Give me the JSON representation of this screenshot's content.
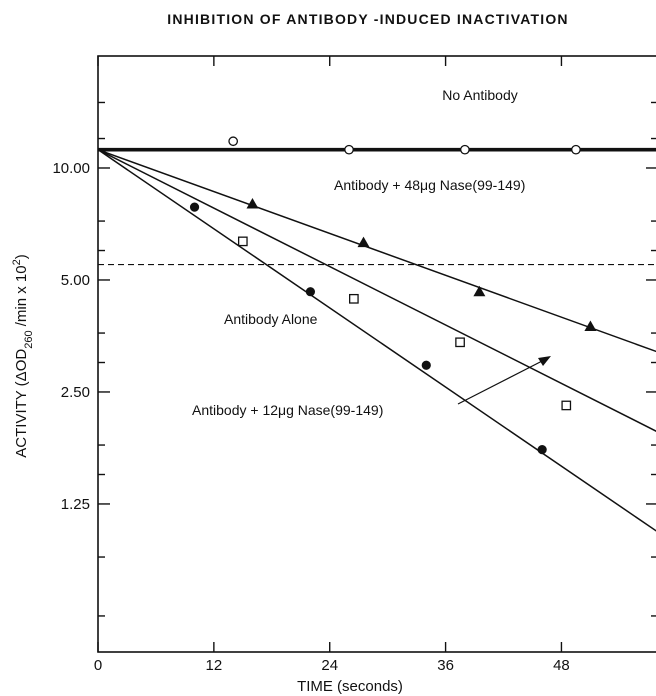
{
  "chart_data": {
    "type": "scatter",
    "title": "INHIBITION OF ANTIBODY -INDUCED INACTIVATION",
    "xlabel": "TIME (seconds)",
    "ylabel": "ACTIVITY (ΔOD260 /min x 10²)",
    "xlim": [
      0,
      58
    ],
    "ylim": [
      0.5,
      20
    ],
    "yscale": "log",
    "x_ticks": [
      0,
      12,
      24,
      36,
      48
    ],
    "y_ticks": [
      1.25,
      2.5,
      5.0,
      10.0
    ],
    "y_tick_labels": [
      "1.25",
      "2.50",
      "5.00",
      "10.00"
    ],
    "x_tick_labels": [
      "0",
      "12",
      "24",
      "36",
      "48"
    ],
    "grid": false,
    "reference_line": {
      "y": 5.5,
      "style": "dashed"
    },
    "series": [
      {
        "name": "No Antibody",
        "marker": "open-circle",
        "points": [
          [
            14,
            11.8
          ],
          [
            26,
            11.2
          ],
          [
            38,
            11.2
          ],
          [
            49.5,
            11.2
          ]
        ],
        "fit": [
          [
            0,
            11.2
          ],
          [
            58,
            11.2
          ]
        ]
      },
      {
        "name": "Antibody + 48μg Nase(99-149)",
        "marker": "filled-triangle",
        "points": [
          [
            16,
            8.0
          ],
          [
            27.5,
            6.3
          ],
          [
            39.5,
            4.65
          ],
          [
            51,
            3.75
          ]
        ],
        "fit": [
          [
            0,
            11.2
          ],
          [
            58,
            3.2
          ]
        ]
      },
      {
        "name": "Antibody + 12μg Nase(99-149)",
        "marker": "open-square",
        "points": [
          [
            15,
            6.35
          ],
          [
            26.5,
            4.45
          ],
          [
            37.5,
            3.4
          ],
          [
            48.5,
            2.3
          ]
        ],
        "fit": [
          [
            0,
            11.2
          ],
          [
            58,
            1.95
          ]
        ]
      },
      {
        "name": "Antibody Alone",
        "marker": "filled-circle",
        "points": [
          [
            10,
            7.85
          ],
          [
            22,
            4.65
          ],
          [
            34,
            2.95
          ],
          [
            46,
            1.75
          ]
        ],
        "fit": [
          [
            0,
            11.2
          ],
          [
            58,
            1.05
          ]
        ]
      }
    ]
  }
}
